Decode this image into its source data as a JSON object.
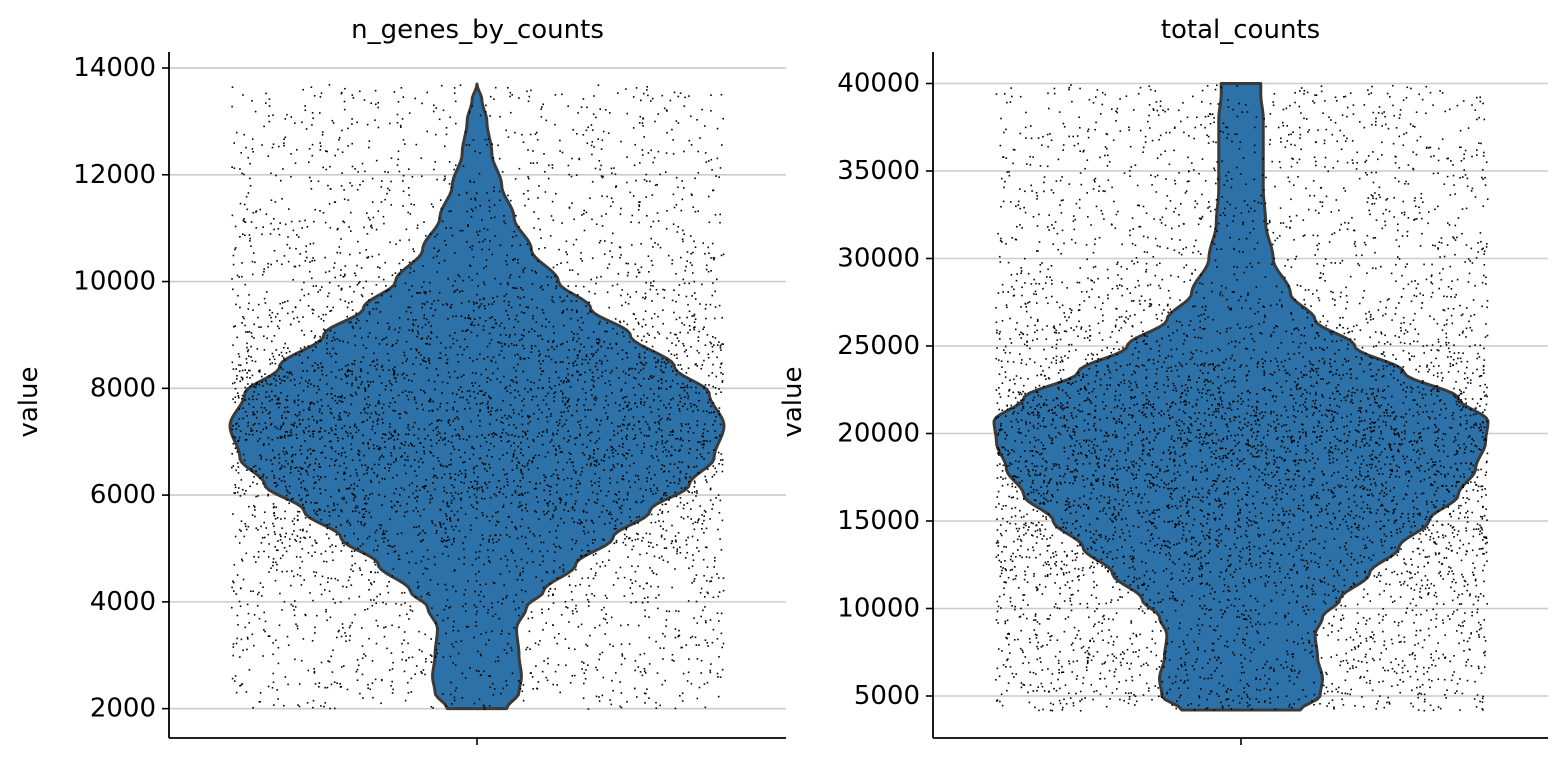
{
  "chart_data": [
    {
      "type": "violin",
      "title": "n_genes_by_counts",
      "xlabel": "",
      "ylabel": "value",
      "ylim": [
        1450,
        14300
      ],
      "yticks": [
        2000,
        4000,
        6000,
        8000,
        10000,
        12000,
        14000
      ],
      "grid": true,
      "jitter_points": true,
      "fill_color": "#2c72a8",
      "edge_color": "#3a3a3a",
      "point_color": "#000000",
      "distribution": {
        "min": 2000,
        "max": 13700,
        "profile": [
          [
            2000,
            0.12
          ],
          [
            2300,
            0.17
          ],
          [
            2600,
            0.18
          ],
          [
            3000,
            0.17
          ],
          [
            3500,
            0.16
          ],
          [
            3900,
            0.2
          ],
          [
            4200,
            0.27
          ],
          [
            4700,
            0.4
          ],
          [
            5200,
            0.55
          ],
          [
            5700,
            0.7
          ],
          [
            6200,
            0.86
          ],
          [
            6700,
            0.96
          ],
          [
            7300,
            1.0
          ],
          [
            7900,
            0.94
          ],
          [
            8400,
            0.8
          ],
          [
            9000,
            0.62
          ],
          [
            9500,
            0.46
          ],
          [
            10000,
            0.33
          ],
          [
            10600,
            0.22
          ],
          [
            11200,
            0.15
          ],
          [
            11800,
            0.1
          ],
          [
            12400,
            0.06
          ],
          [
            13000,
            0.04
          ],
          [
            13400,
            0.02
          ],
          [
            13700,
            0.0
          ]
        ]
      }
    },
    {
      "type": "violin",
      "title": "total_counts",
      "xlabel": "",
      "ylabel": "value",
      "ylim": [
        2600,
        41800
      ],
      "yticks": [
        5000,
        10000,
        15000,
        20000,
        25000,
        30000,
        35000,
        40000
      ],
      "grid": true,
      "jitter_points": true,
      "fill_color": "#2c72a8",
      "edge_color": "#3a3a3a",
      "point_color": "#000000",
      "distribution": {
        "min": 4200,
        "max": 40000,
        "profile": [
          [
            4200,
            0.24
          ],
          [
            5000,
            0.32
          ],
          [
            6000,
            0.33
          ],
          [
            7200,
            0.31
          ],
          [
            8500,
            0.3
          ],
          [
            9500,
            0.33
          ],
          [
            10500,
            0.4
          ],
          [
            12000,
            0.52
          ],
          [
            13500,
            0.64
          ],
          [
            15000,
            0.76
          ],
          [
            16500,
            0.88
          ],
          [
            18000,
            0.95
          ],
          [
            19500,
            0.99
          ],
          [
            20700,
            1.0
          ],
          [
            22000,
            0.88
          ],
          [
            23500,
            0.66
          ],
          [
            25000,
            0.46
          ],
          [
            26500,
            0.3
          ],
          [
            28000,
            0.2
          ],
          [
            30000,
            0.13
          ],
          [
            32000,
            0.1
          ],
          [
            34000,
            0.09
          ],
          [
            36000,
            0.09
          ],
          [
            38000,
            0.09
          ],
          [
            39400,
            0.08
          ],
          [
            40000,
            0.08
          ]
        ]
      }
    }
  ]
}
